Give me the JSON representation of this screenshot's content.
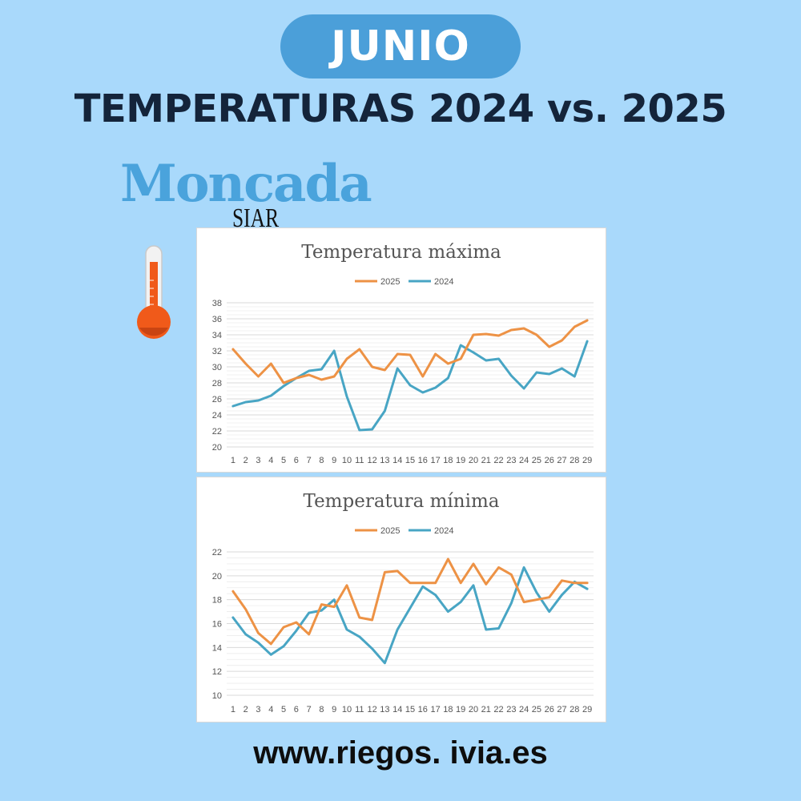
{
  "header": {
    "month": "JUNIO",
    "title": "TEMPERATURAS 2024 vs. 2025"
  },
  "logo": {
    "main": "Moncada",
    "sub": "SIAR"
  },
  "footer": {
    "url": "www.riegos. ivia.es"
  },
  "colors": {
    "background": "#a9d9fb",
    "series_2025": "#ed9245",
    "series_2024": "#48a5c4",
    "pill": "#4b9fd9"
  },
  "icons": {
    "thermometer": "thermometer-icon"
  },
  "chart_data": [
    {
      "type": "line",
      "title": "Temperatura máxima",
      "x": [
        1,
        2,
        3,
        4,
        5,
        6,
        7,
        8,
        9,
        10,
        11,
        12,
        13,
        14,
        15,
        16,
        17,
        18,
        19,
        20,
        21,
        22,
        23,
        24,
        25,
        26,
        27,
        28,
        29
      ],
      "ylim": [
        20,
        38
      ],
      "yticks": [
        20,
        22,
        24,
        26,
        28,
        30,
        32,
        34,
        36,
        38
      ],
      "grid": true,
      "legend": "top",
      "series": [
        {
          "name": "2025",
          "color": "#ed9245",
          "values": [
            32.2,
            30.4,
            28.8,
            30.4,
            28.0,
            28.6,
            29.0,
            28.4,
            28.8,
            31.0,
            32.2,
            30.0,
            29.6,
            31.6,
            31.5,
            28.8,
            31.6,
            30.4,
            31.0,
            34.0,
            34.1,
            33.9,
            34.6,
            34.8,
            34.0,
            32.5,
            33.3,
            35.0,
            35.8
          ]
        },
        {
          "name": "2024",
          "color": "#48a5c4",
          "values": [
            25.1,
            25.6,
            25.8,
            26.4,
            27.6,
            28.6,
            29.5,
            29.7,
            32.0,
            26.3,
            22.1,
            22.2,
            24.5,
            29.8,
            27.7,
            26.8,
            27.4,
            28.6,
            32.7,
            31.8,
            30.8,
            31.0,
            28.9,
            27.3,
            29.3,
            29.1,
            29.8,
            28.8,
            33.2
          ]
        }
      ]
    },
    {
      "type": "line",
      "title": "Temperatura mínima",
      "x": [
        1,
        2,
        3,
        4,
        5,
        6,
        7,
        8,
        9,
        10,
        11,
        12,
        13,
        14,
        15,
        16,
        17,
        18,
        19,
        20,
        21,
        22,
        23,
        24,
        25,
        26,
        27,
        28,
        29
      ],
      "ylim": [
        10,
        22
      ],
      "yticks": [
        10,
        12,
        14,
        16,
        18,
        20,
        22
      ],
      "grid": true,
      "legend": "top",
      "series": [
        {
          "name": "2025",
          "color": "#ed9245",
          "values": [
            18.7,
            17.2,
            15.2,
            14.3,
            15.7,
            16.1,
            15.1,
            17.6,
            17.4,
            19.2,
            16.5,
            16.3,
            20.3,
            20.4,
            19.4,
            19.4,
            19.4,
            21.4,
            19.4,
            21.0,
            19.3,
            20.7,
            20.1,
            17.8,
            18.0,
            18.2,
            19.6,
            19.4,
            19.4
          ]
        },
        {
          "name": "2024",
          "color": "#48a5c4",
          "values": [
            16.5,
            15.1,
            14.4,
            13.4,
            14.1,
            15.4,
            16.9,
            17.1,
            18.0,
            15.5,
            14.9,
            13.9,
            12.7,
            15.5,
            17.3,
            19.1,
            18.4,
            17.0,
            17.8,
            19.2,
            15.5,
            15.6,
            17.7,
            20.7,
            18.6,
            17.0,
            18.4,
            19.5,
            18.9
          ]
        }
      ]
    }
  ]
}
